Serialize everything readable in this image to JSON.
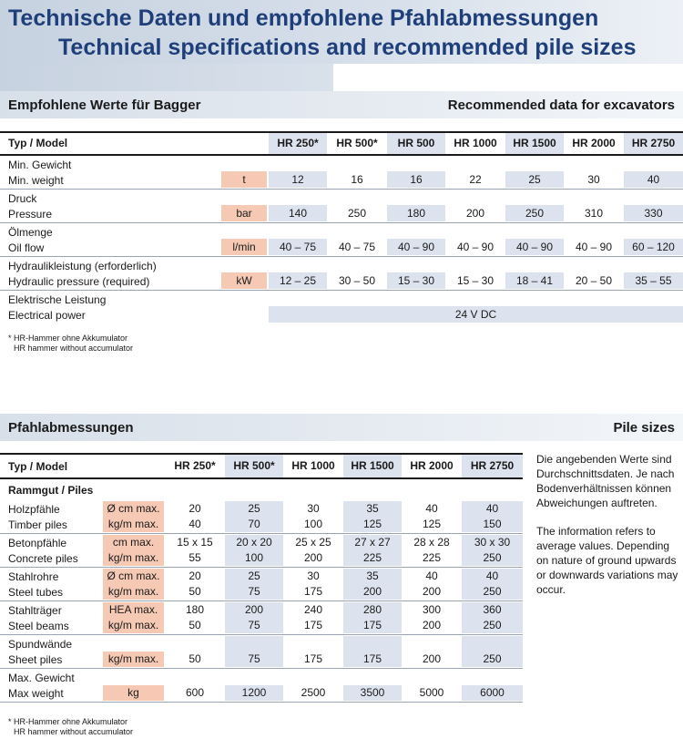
{
  "header": {
    "title_de": "Technische Daten und empfohlene Pfahlabmessungen",
    "title_en": "Technical specifications and recommended pile sizes"
  },
  "section1": {
    "title_de": "Empfohlene Werte für Bagger",
    "title_en": "Recommended data for excavators",
    "model_label": "Typ / Model",
    "models": [
      "HR 250*",
      "HR 500*",
      "HR 500",
      "HR 1000",
      "HR 1500",
      "HR 2000",
      "HR 2750"
    ],
    "rows": [
      {
        "de": "Min. Gewicht",
        "en": "Min. weight",
        "unit": "t",
        "values": [
          "12",
          "16",
          "16",
          "22",
          "25",
          "30",
          "40"
        ]
      },
      {
        "de": "Druck",
        "en": "Pressure",
        "unit": "bar",
        "values": [
          "140",
          "250",
          "180",
          "200",
          "250",
          "310",
          "330"
        ]
      },
      {
        "de": "Ölmenge",
        "en": "Oil flow",
        "unit": "l/min",
        "values": [
          "40 – 75",
          "40 – 75",
          "40 – 90",
          "40 – 90",
          "40 – 90",
          "40 – 90",
          "60 – 120"
        ]
      },
      {
        "de": "Hydraulikleistung (erforderlich)",
        "en": "Hydraulic pressure (required)",
        "unit": "kW",
        "values": [
          "12 – 25",
          "30 – 50",
          "15 – 30",
          "15 – 30",
          "18 – 41",
          "20 – 50",
          "35 – 55"
        ]
      }
    ],
    "power": {
      "de": "Elektrische Leistung",
      "en": "Electrical power",
      "value": "24 V DC"
    },
    "note_de": "* HR-Hammer ohne Akkumulator",
    "note_en": "HR hammer without accumulator"
  },
  "section2": {
    "title_de": "Pfahlabmessungen",
    "title_en": "Pile sizes",
    "model_label": "Typ / Model",
    "models": [
      "HR 250*",
      "HR 500*",
      "HR 1000",
      "HR 1500",
      "HR 2000",
      "HR 2750"
    ],
    "subheader": "Rammgut / Piles",
    "rows": [
      {
        "de": "Holzpfähle",
        "en": "Timber piles",
        "unit1": "Ø cm max.",
        "unit2": "kg/m max.",
        "v1": [
          "20",
          "25",
          "30",
          "35",
          "40",
          "40"
        ],
        "v2": [
          "40",
          "70",
          "100",
          "125",
          "125",
          "150"
        ]
      },
      {
        "de": "Betonpfähle",
        "en": "Concrete piles",
        "unit1": "cm max.",
        "unit2": "kg/m max.",
        "v1": [
          "15 x 15",
          "20 x 20",
          "25 x 25",
          "27 x 27",
          "28 x 28",
          "30 x 30"
        ],
        "v2": [
          "55",
          "100",
          "200",
          "225",
          "225",
          "250"
        ]
      },
      {
        "de": "Stahlrohre",
        "en": "Steel tubes",
        "unit1": "Ø cm max.",
        "unit2": "kg/m max.",
        "v1": [
          "20",
          "25",
          "30",
          "35",
          "40",
          "40"
        ],
        "v2": [
          "50",
          "75",
          "175",
          "200",
          "200",
          "250"
        ]
      },
      {
        "de": "Stahlträger",
        "en": "Steel beams",
        "unit1": "HEA max.",
        "unit2": "kg/m max.",
        "v1": [
          "180",
          "200",
          "240",
          "280",
          "300",
          "360"
        ],
        "v2": [
          "50",
          "75",
          "175",
          "175",
          "200",
          "250"
        ]
      },
      {
        "de": "Spundwände",
        "en": "Sheet piles",
        "unit1": "",
        "unit2": "kg/m max.",
        "v1": [
          "",
          "",
          "",
          "",
          "",
          ""
        ],
        "v2": [
          "50",
          "75",
          "175",
          "175",
          "200",
          "250"
        ]
      },
      {
        "de": "Max. Gewicht",
        "en": "Max weight",
        "unit1": "",
        "unit2": "kg",
        "v1": [
          "",
          "",
          "",
          "",
          "",
          ""
        ],
        "v2": [
          "600",
          "1200",
          "2500",
          "3500",
          "5000",
          "6000"
        ]
      }
    ],
    "side_de": "Die angebenden Werte sind Durchschnittsdaten. Je nach Bodenverhältnissen können Abweichungen auftreten.",
    "side_en": "The information refers to average values. Depending on nature of ground upwards or downwards variations may occur.",
    "note_de": "* HR-Hammer ohne Akkumulator",
    "note_en": "HR hammer without accumulator"
  }
}
